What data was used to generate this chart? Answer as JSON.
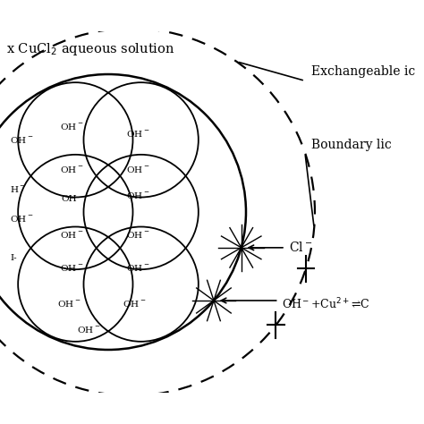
{
  "bg_color": "#ffffff",
  "line_color": "#000000",
  "text_color": "#000000",
  "title": "x CuCl",
  "title2": " aqueous solution",
  "label_exchangeable": "Exchangeable ic",
  "label_boundary": "Boundary lic",
  "label_cl": "Cl⁻",
  "label_reaction": "OH⁻+Cu²⁺⇌C",
  "figsize": [
    4.74,
    4.74
  ],
  "dpi": 100
}
